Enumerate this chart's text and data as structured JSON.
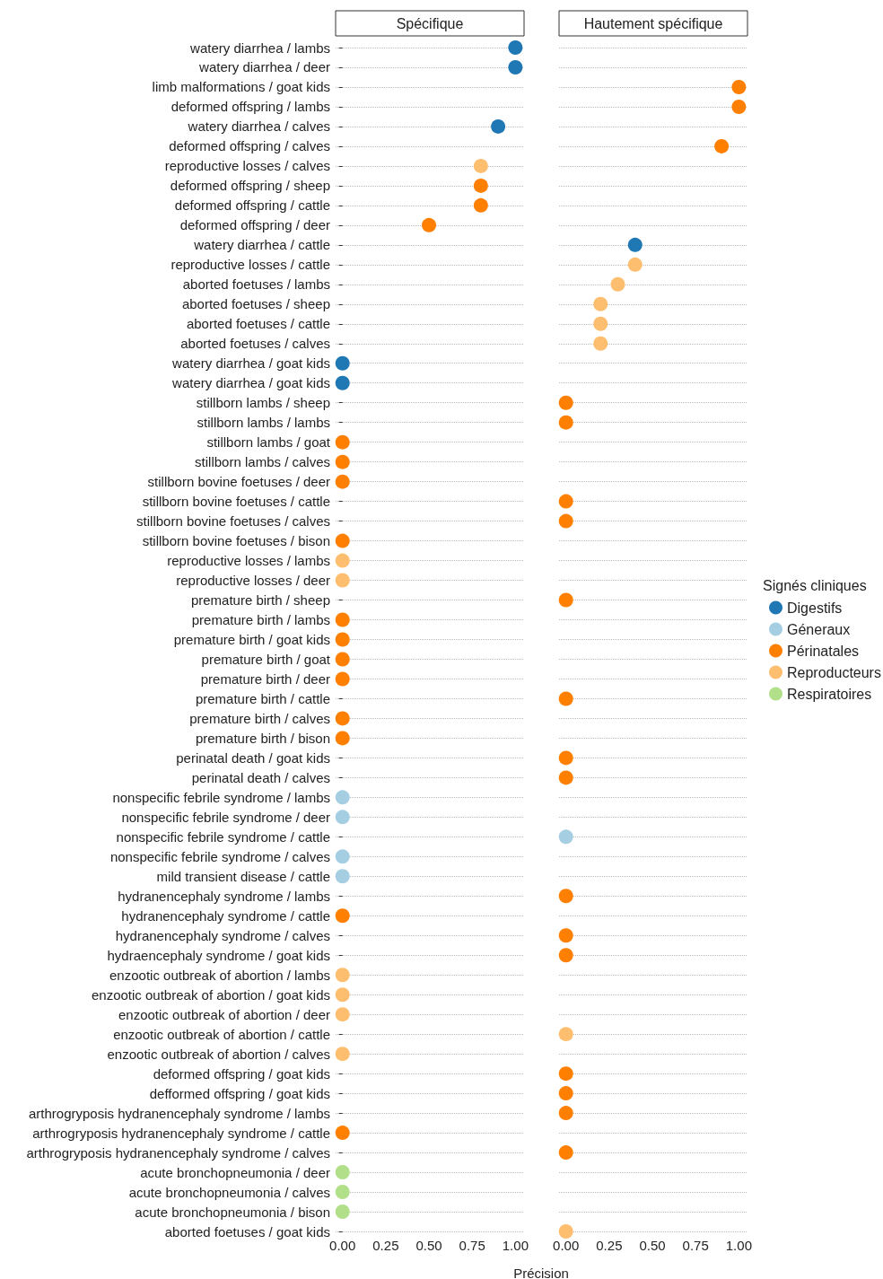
{
  "chart_data": [
    {
      "type": "scatter",
      "orientation": "horizontal",
      "title": "Spécifique",
      "xlabel": "Précision",
      "legend_title": "Signés cliniques",
      "legend": "right",
      "marker": "circle",
      "grid": "y",
      "categories": [
        "watery diarrhea / lambs",
        "watery diarrhea / deer",
        "limb malformations / goat kids",
        "deformed offspring / lambs",
        "watery diarrhea / calves",
        "deformed offspring / calves",
        "reproductive losses / calves",
        "deformed offspring / sheep",
        "deformed offspring / cattle",
        "deformed offspring / deer",
        "watery diarrhea / cattle",
        "reproductive losses / cattle",
        "aborted foetuses / lambs",
        "aborted foetuses / sheep",
        "aborted foetuses / cattle",
        "aborted foetuses / calves",
        "watery diarrhea / goat kids",
        "watery diarrhea / goat kids",
        "stillborn lambs / sheep",
        "stillborn lambs / lambs",
        "stillborn lambs / goat",
        "stillborn lambs / calves",
        "stillborn bovine foetuses / deer",
        "stillborn bovine foetuses / cattle",
        "stillborn bovine foetuses / calves",
        "stillborn bovine foetuses / bison",
        "reproductive losses / lambs",
        "reproductive losses / deer",
        "premature birth / sheep",
        "premature birth / lambs",
        "premature birth / goat kids",
        "premature birth / goat",
        "premature birth / deer",
        "premature birth / cattle",
        "premature birth / calves",
        "premature birth / bison",
        "perinatal death / goat kids",
        "perinatal death / calves",
        "nonspecific febrile syndrome / lambs",
        "nonspecific febrile syndrome / deer",
        "nonspecific febrile syndrome / cattle",
        "nonspecific febrile syndrome / calves",
        "mild transient disease / cattle",
        "hydranencephaly syndrome / lambs",
        "hydranencephaly syndrome / cattle",
        "hydranencephaly syndrome / calves",
        "hydraencephaly syndrome / goat kids",
        "enzootic outbreak of abortion / lambs",
        "enzootic outbreak of abortion / goat kids",
        "enzootic outbreak of abortion / deer",
        "enzootic outbreak of abortion / cattle",
        "enzootic outbreak of abortion / calves",
        "deformed offspring / goat kids",
        "defformed offspring / goat kids",
        "arthrogryposis hydranencephaly syndrome / lambs",
        "arthrogryposis hydranencephaly syndrome / cattle",
        "arthrogryposis hydranencephaly syndrome / calves",
        "acute bronchopneumonia / deer",
        "acute bronchopneumonia / calves",
        "acute bronchopneumonia / bison",
        "aborted foetuses / goat kids"
      ],
      "xlim": [
        -0.04,
        1.05
      ],
      "xticks": [
        {
          "value": 0,
          "label": "0.00"
        },
        {
          "value": 0.25,
          "label": "0.25"
        },
        {
          "value": 0.5,
          "label": "0.50"
        },
        {
          "value": 0.75,
          "label": "0.75"
        },
        {
          "value": 1,
          "label": "1.00"
        }
      ],
      "series": [
        {
          "name": "Digestifs",
          "color": "#1f78b4",
          "values": [
            1,
            1,
            null,
            null,
            0.9,
            null,
            null,
            null,
            null,
            null,
            null,
            null,
            null,
            null,
            null,
            null,
            0,
            0,
            null,
            null,
            null,
            null,
            null,
            null,
            null,
            null,
            null,
            null,
            null,
            null,
            null,
            null,
            null,
            null,
            null,
            null,
            null,
            null,
            null,
            null,
            null,
            null,
            null,
            null,
            null,
            null,
            null,
            null,
            null,
            null,
            null,
            null,
            null,
            null,
            null,
            null,
            null,
            null,
            null,
            null,
            null
          ]
        },
        {
          "name": "Géneraux",
          "color": "#a6cee3",
          "values": [
            null,
            null,
            null,
            null,
            null,
            null,
            null,
            null,
            null,
            null,
            null,
            null,
            null,
            null,
            null,
            null,
            null,
            null,
            null,
            null,
            null,
            null,
            null,
            null,
            null,
            null,
            null,
            null,
            null,
            null,
            null,
            null,
            null,
            null,
            null,
            null,
            null,
            null,
            0,
            0,
            null,
            0,
            0,
            null,
            null,
            null,
            null,
            null,
            null,
            null,
            null,
            null,
            null,
            null,
            null,
            null,
            null,
            null,
            null,
            null,
            null
          ]
        },
        {
          "name": "Périnatales",
          "color": "#ff7f00",
          "values": [
            null,
            null,
            null,
            null,
            null,
            null,
            null,
            0.8,
            0.8,
            0.5,
            null,
            null,
            null,
            null,
            null,
            null,
            null,
            null,
            null,
            null,
            0,
            0,
            0,
            null,
            null,
            0,
            null,
            null,
            null,
            0,
            0,
            0,
            0,
            null,
            0,
            0,
            null,
            null,
            null,
            null,
            null,
            null,
            null,
            null,
            0,
            null,
            null,
            null,
            null,
            null,
            null,
            null,
            null,
            null,
            null,
            0,
            null,
            null,
            null,
            null,
            null
          ]
        },
        {
          "name": "Reproducteurs",
          "color": "#fdbf6f",
          "values": [
            null,
            null,
            null,
            null,
            null,
            null,
            0.8,
            null,
            null,
            null,
            null,
            null,
            null,
            null,
            null,
            null,
            null,
            null,
            null,
            null,
            null,
            null,
            null,
            null,
            null,
            null,
            0,
            0,
            null,
            null,
            null,
            null,
            null,
            null,
            null,
            null,
            null,
            null,
            null,
            null,
            null,
            null,
            null,
            null,
            null,
            null,
            null,
            0,
            0,
            0,
            null,
            0,
            null,
            null,
            null,
            null,
            null,
            null,
            null,
            null,
            null
          ]
        },
        {
          "name": "Respiratoires",
          "color": "#b2df8a",
          "values": [
            null,
            null,
            null,
            null,
            null,
            null,
            null,
            null,
            null,
            null,
            null,
            null,
            null,
            null,
            null,
            null,
            null,
            null,
            null,
            null,
            null,
            null,
            null,
            null,
            null,
            null,
            null,
            null,
            null,
            null,
            null,
            null,
            null,
            null,
            null,
            null,
            null,
            null,
            null,
            null,
            null,
            null,
            null,
            null,
            null,
            null,
            null,
            null,
            null,
            null,
            null,
            null,
            null,
            null,
            null,
            null,
            null,
            0,
            0,
            0,
            null
          ]
        }
      ]
    },
    {
      "type": "scatter",
      "orientation": "horizontal",
      "title": "Hautement spécifique",
      "marker": "circle",
      "grid": "y",
      "tick_labels": "x",
      "xlim": [
        -0.04,
        1.05
      ],
      "xticks": [
        {
          "value": 0,
          "label": "0.00"
        },
        {
          "value": 0.25,
          "label": "0.25"
        },
        {
          "value": 0.5,
          "label": "0.50"
        },
        {
          "value": 0.75,
          "label": "0.75"
        },
        {
          "value": 1,
          "label": "1.00"
        }
      ],
      "series": [
        {
          "color": "#1f78b4",
          "values": [
            null,
            null,
            null,
            null,
            null,
            null,
            null,
            null,
            null,
            null,
            0.4,
            null,
            null,
            null,
            null,
            null,
            null,
            null,
            null,
            null,
            null,
            null,
            null,
            null,
            null,
            null,
            null,
            null,
            null,
            null,
            null,
            null,
            null,
            null,
            null,
            null,
            null,
            null,
            null,
            null,
            null,
            null,
            null,
            null,
            null,
            null,
            null,
            null,
            null,
            null,
            null,
            null,
            null,
            null,
            null,
            null,
            null,
            null,
            null,
            null,
            null
          ]
        },
        {
          "color": "#a6cee3",
          "values": [
            null,
            null,
            null,
            null,
            null,
            null,
            null,
            null,
            null,
            null,
            null,
            null,
            null,
            null,
            null,
            null,
            null,
            null,
            null,
            null,
            null,
            null,
            null,
            null,
            null,
            null,
            null,
            null,
            null,
            null,
            null,
            null,
            null,
            null,
            null,
            null,
            null,
            null,
            null,
            null,
            0,
            null,
            null,
            null,
            null,
            null,
            null,
            null,
            null,
            null,
            null,
            null,
            null,
            null,
            null,
            null,
            null,
            null,
            null,
            null,
            null
          ]
        },
        {
          "color": "#ff7f00",
          "values": [
            null,
            null,
            1,
            1,
            null,
            0.9,
            null,
            null,
            null,
            null,
            null,
            null,
            null,
            null,
            null,
            null,
            null,
            null,
            0,
            0,
            null,
            null,
            null,
            0,
            0,
            null,
            null,
            null,
            0,
            null,
            null,
            null,
            null,
            0,
            null,
            null,
            0,
            0,
            null,
            null,
            null,
            null,
            null,
            0,
            null,
            0,
            0,
            null,
            null,
            null,
            null,
            null,
            0,
            0,
            0,
            null,
            0,
            null,
            null,
            null,
            null
          ]
        },
        {
          "color": "#fdbf6f",
          "values": [
            null,
            null,
            null,
            null,
            null,
            null,
            null,
            null,
            null,
            null,
            null,
            0.4,
            0.3,
            0.2,
            0.2,
            0.2,
            null,
            null,
            null,
            null,
            null,
            null,
            null,
            null,
            null,
            null,
            null,
            null,
            null,
            null,
            null,
            null,
            null,
            null,
            null,
            null,
            null,
            null,
            null,
            null,
            null,
            null,
            null,
            null,
            null,
            null,
            null,
            null,
            null,
            null,
            0,
            null,
            null,
            null,
            null,
            null,
            null,
            null,
            null,
            null,
            0
          ]
        }
      ]
    }
  ]
}
